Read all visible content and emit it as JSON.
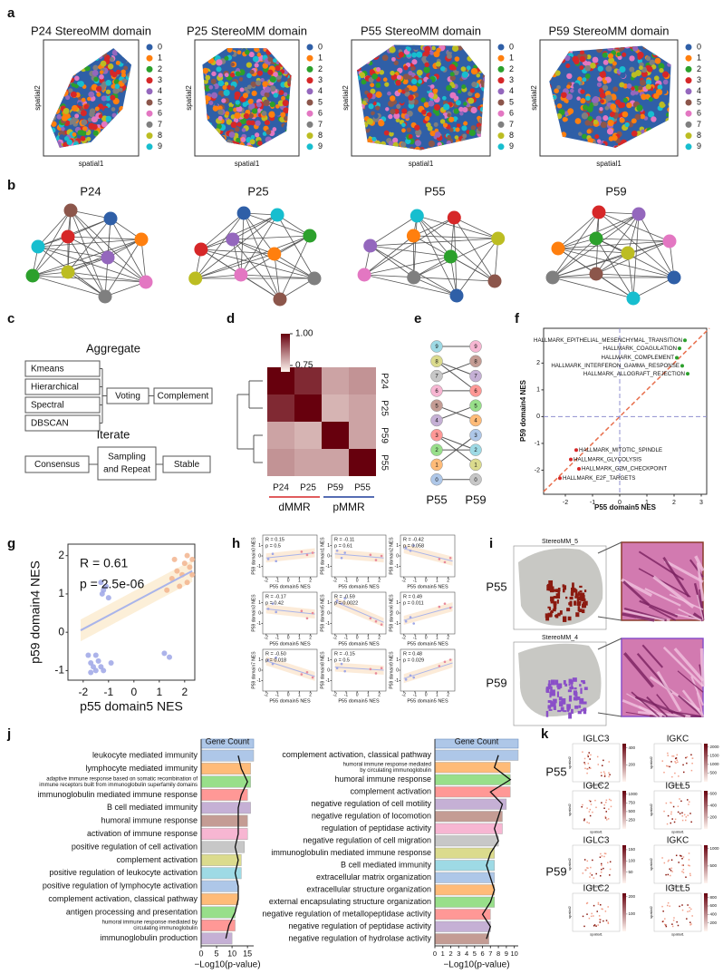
{
  "panel_labels": [
    "a",
    "b",
    "c",
    "d",
    "e",
    "f",
    "g",
    "h",
    "i",
    "j",
    "k"
  ],
  "a": {
    "titles": [
      "P24 StereoMM domain",
      "P25 StereoMM domain",
      "P55 StereoMM domain",
      "P59 StereoMM domain"
    ],
    "xlabel": "spatial1",
    "ylabel": "spatial2",
    "legend": [
      "0",
      "1",
      "2",
      "3",
      "4",
      "5",
      "6",
      "7",
      "8",
      "9"
    ],
    "colors": [
      "#2f5fa7",
      "#ff7f0e",
      "#2ca02c",
      "#d62728",
      "#9467bd",
      "#8c564b",
      "#e377c2",
      "#7f7f7f",
      "#bcbd22",
      "#17becf"
    ]
  },
  "b": {
    "titles": [
      "P24",
      "P25",
      "P55",
      "P59"
    ]
  },
  "c": {
    "aggregate": "Aggregate",
    "methods": [
      "Kmeans",
      "Hierarchical",
      "Spectral",
      "DBSCAN"
    ],
    "voting": "Voting",
    "complement": "Complement",
    "iterate": "Iterate",
    "consensus": "Consensus",
    "sampling": [
      "Sampling",
      "and Repeat"
    ],
    "stable": "Stable"
  },
  "d": {
    "type": "heatmap",
    "rows": [
      "P24",
      "P25",
      "P59",
      "P55"
    ],
    "columns": [
      "P24",
      "P25",
      "P59",
      "P55"
    ],
    "values": [
      [
        1.0,
        0.95,
        0.8,
        0.82
      ],
      [
        0.95,
        1.0,
        0.78,
        0.8
      ],
      [
        0.8,
        0.78,
        1.0,
        0.8
      ],
      [
        0.82,
        0.8,
        0.8,
        1.0
      ]
    ],
    "clim": [
      0.7,
      1.0
    ],
    "colorbar_ticks": [
      {
        "value": 1.0,
        "label": "1.00"
      },
      {
        "value": 0.75,
        "label": "0.75"
      }
    ],
    "groups": [
      "dMMR",
      "pMMR"
    ]
  },
  "e": {
    "left_nodes": [
      "9",
      "8",
      "7",
      "6",
      "5",
      "4",
      "3",
      "2",
      "1",
      "0"
    ],
    "right_nodes": [
      "9",
      "8",
      "7",
      "6",
      "5",
      "4",
      "3",
      "2",
      "1",
      "0"
    ],
    "labels": [
      "P55",
      "P59"
    ]
  },
  "f": {
    "type": "scatter",
    "xlabel": "P55 domain5 NES",
    "ylabel": "P59 domain4 NES",
    "xlim": [
      -2.8,
      3.2
    ],
    "ylim": [
      -2.9,
      3.3
    ],
    "xticks": [
      -2,
      -1,
      0,
      1,
      2,
      3
    ],
    "yticks": [
      -2,
      -1,
      0,
      1,
      2
    ],
    "x": [
      2.4,
      2.2,
      2.1,
      2.3,
      2.5,
      -1.6,
      -1.8,
      -1.5,
      -2.2
    ],
    "y": [
      2.85,
      2.55,
      2.2,
      1.9,
      1.6,
      -1.25,
      -1.6,
      -1.95,
      -2.3
    ],
    "labels": [
      "HALLMARK_EPITHELIAL_MESENCHYMAL_TRANSITION",
      "HALLMARK_COAGULATION",
      "HALLMARK_COMPLEMENT",
      "HALLMARK_INTERFERON_GAMMA_RESPONSE",
      "HALLMARK_ALLOGRAFT_REJECTION",
      "HALLMARK_MITOTIC_SPINDLE",
      "HALLMARK_GLYCOLYSIS",
      "HALLMARK_G2M_CHECKPOINT",
      "HALLMARK_E2F_TARGETS"
    ]
  },
  "g": {
    "type": "scatter",
    "xlabel": "p55 domain5 NES",
    "ylabel": "p59 domain4 NES",
    "r_text": "R = 0.61",
    "p_text": "p = 2.5e-06",
    "xlim": [
      -2.6,
      2.4
    ],
    "ylim": [
      -1.25,
      2.3
    ],
    "xticks": [
      -2,
      -1,
      0,
      1,
      2
    ],
    "yticks": [
      -1,
      0,
      1,
      2
    ],
    "fit_x": [
      -2.1,
      2.3
    ],
    "fit_y": [
      0.05,
      1.6
    ],
    "groups": [
      {
        "color": "#9ea6e6",
        "x": [
          -1.8,
          -1.7,
          -1.6,
          -1.5,
          -1.4,
          -1.3,
          -1.2,
          -1.7,
          -1.5,
          -1.3,
          -1.2,
          -1.1,
          -1.25,
          -1.0,
          1.2,
          1.4,
          -0.9
        ],
        "y": [
          -0.6,
          -0.8,
          -0.9,
          -1.0,
          -0.75,
          -0.9,
          -1.0,
          -1.05,
          -0.6,
          1.3,
          1.1,
          1.2,
          1.0,
          0.9,
          -0.55,
          -0.65,
          -0.8
        ]
      },
      {
        "color": "#f2b48e",
        "x": [
          1.3,
          1.5,
          1.7,
          1.9,
          2.0,
          2.1,
          2.2,
          2.3,
          1.8,
          2.1,
          1.6,
          2.3
        ],
        "y": [
          1.1,
          1.4,
          1.6,
          1.5,
          1.8,
          2.0,
          1.7,
          1.9,
          1.2,
          1.3,
          1.9,
          1.5
        ]
      }
    ]
  },
  "h": {
    "xlabel": "P55 domain5 NES",
    "xlim": [
      -2.3,
      2.6
    ],
    "ylim": [
      -2,
      2
    ],
    "xticks": [
      -2,
      -1,
      0,
      1,
      2
    ],
    "yticks": [
      -1,
      0,
      1
    ],
    "x": [
      -1.8,
      -1.4,
      -1.1,
      1.2,
      1.7,
      2.2
    ],
    "fit_x": [
      -2,
      2.4
    ],
    "plots": [
      {
        "ylabel": "P59 domain0 NES",
        "r_text": "R = 0.15",
        "p_text": "p = 0.5",
        "y": [
          -0.3,
          0.2,
          -0.5,
          0.4,
          0.1,
          0.3
        ],
        "fit": [
          -0.2,
          0.3
        ]
      },
      {
        "ylabel": "P59 domain1 NES",
        "r_text": "R = -0.11",
        "p_text": "p = 0.61",
        "y": [
          0.5,
          -0.2,
          0.3,
          0.1,
          -0.4,
          0.0
        ],
        "fit": [
          0.2,
          -0.2
        ]
      },
      {
        "ylabel": "P59 domain2 NES",
        "r_text": "R = -0.42",
        "p_text": "p = 0.058",
        "y": [
          0.8,
          0.5,
          1.0,
          -0.3,
          -0.6,
          -0.2
        ],
        "fit": [
          0.7,
          -0.5
        ]
      },
      {
        "ylabel": "P59 domain3 NES",
        "r_text": "R = -0.17",
        "p_text": "p = 0.42",
        "y": [
          0.4,
          0.9,
          0.1,
          0.2,
          -0.5,
          0.0
        ],
        "fit": [
          0.4,
          -0.1
        ]
      },
      {
        "ylabel": "P59 domain5 NES",
        "r_text": "R = -0.59",
        "p_text": "p = 0.0022",
        "y": [
          1.2,
          0.9,
          1.4,
          -0.5,
          -0.8,
          -1.1
        ],
        "fit": [
          1.1,
          -0.9
        ]
      },
      {
        "ylabel": "P59 domain6 NES",
        "r_text": "R = 0.49",
        "p_text": "p = 0.011",
        "y": [
          -0.8,
          -0.4,
          -1.0,
          0.6,
          0.9,
          0.5
        ],
        "fit": [
          -0.7,
          0.6
        ]
      },
      {
        "ylabel": "P59 domain7 NES",
        "r_text": "R = -0.50",
        "p_text": "p = 0.018",
        "y": [
          1.0,
          0.6,
          1.2,
          -0.4,
          -0.2,
          -0.7
        ],
        "fit": [
          0.9,
          -0.6
        ]
      },
      {
        "ylabel": "P59 domain8 NES",
        "r_text": "R = -0.15",
        "p_text": "p = 0.5",
        "y": [
          0.2,
          0.6,
          -0.1,
          0.1,
          -0.3,
          0.2
        ],
        "fit": [
          0.3,
          0.0
        ]
      },
      {
        "ylabel": "P59 domain9 NES",
        "r_text": "R = 0.48",
        "p_text": "p = 0.029",
        "y": [
          -0.9,
          -0.5,
          -0.7,
          0.4,
          0.8,
          1.0
        ],
        "fit": [
          -0.8,
          0.7
        ]
      }
    ]
  },
  "i": {
    "titles": [
      "StereoMM_5",
      "StereoMM_4"
    ],
    "samples": [
      "P55",
      "P59"
    ],
    "colors": [
      "#8b1a10",
      "#8a4fc8"
    ]
  },
  "j": {
    "header": "Gene Count",
    "xlabel": "−Log10(p-value)",
    "highlight_color": "#8b3a96",
    "bar_colors": [
      "#aec7e8",
      "#ffbb78",
      "#98df8a",
      "#ff9896",
      "#c5b0d5",
      "#c49c94",
      "#f7b6d2",
      "#c7c7c7",
      "#dbdb8d",
      "#9edae5"
    ],
    "left": {
      "xlim": [
        0,
        17
      ],
      "xticks": [
        0,
        5,
        10,
        15
      ],
      "highlight": 4,
      "terms": [
        "leukocyte mediated immunity",
        "lymphocyte mediated immunity",
        [
          "adaptive immune response based on somatic recombination of",
          "immune receptors built from immunoglobulin superfamily domains"
        ],
        "immunoglobulin mediated immune response",
        "B cell mediated immunity",
        "humoral immune response",
        "activation of immune response",
        "positive regulation of cell activation",
        "complement activation",
        "positive regulation of leukocyte activation",
        "positive regulation of lymphocyte activation",
        "complement activation, classical pathway",
        "antigen processing and presentation",
        [
          "humoral immune response mediated by",
          "circulating immunoglobulin"
        ],
        "immunoglobulin production"
      ],
      "values": [
        17,
        16,
        16,
        15,
        16,
        15,
        15,
        14,
        13,
        13,
        12,
        12,
        11,
        11,
        10
      ],
      "line_values": [
        12,
        13,
        15,
        13,
        12,
        12,
        12,
        11,
        12,
        11,
        12,
        12,
        11,
        9,
        8
      ]
    },
    "right": {
      "xlim": [
        0,
        10.5
      ],
      "xticks": [
        0,
        1,
        2,
        3,
        4,
        5,
        6,
        7,
        8,
        9,
        10
      ],
      "highlight": 9,
      "terms": [
        "complement activation, classical pathway",
        [
          "humoral immune response mediated",
          "by circulating immunoglobulin"
        ],
        "humoral immune response",
        "complement activation",
        "negative regulation of cell motility",
        "negative regulation of locomotion",
        "regulation of peptidase activity",
        "negative regulation of cell migration",
        "immunoglobulin mediated immune response",
        "B cell mediated immunity",
        "extracellular matrix organization",
        "extracellular structure organization",
        "external encapsulating structure organization",
        "negative regulation of metallopeptidase activity",
        "negative regulation of peptidase activity",
        "negative regulation of hydrolase activity"
      ],
      "values": [
        10.5,
        9.5,
        9.5,
        9.5,
        9,
        8.5,
        8.5,
        8,
        7.5,
        7.5,
        7.5,
        7.5,
        7.5,
        7,
        7,
        6.8
      ],
      "line_values": [
        8,
        7.5,
        9.5,
        7,
        8.5,
        8,
        7.5,
        8,
        7,
        6.5,
        7,
        7.5,
        7,
        6,
        7,
        6.5
      ]
    }
  },
  "k": {
    "samples": [
      "P55",
      "P59"
    ],
    "xlabel": "spatial1",
    "ylabel": "spatial2",
    "panels": [
      {
        "gene": "IGLC3",
        "clim": [
          0,
          450
        ],
        "ticks": [
          200,
          400
        ]
      },
      {
        "gene": "IGKC",
        "clim": [
          0,
          2200
        ],
        "ticks": [
          500,
          1000,
          1500,
          2000
        ]
      },
      {
        "gene": "IGLC2",
        "clim": [
          0,
          1100
        ],
        "ticks": [
          250,
          500,
          750,
          1000
        ]
      },
      {
        "gene": "IGLL5",
        "clim": [
          0,
          650
        ],
        "ticks": [
          200,
          400,
          600
        ]
      },
      {
        "gene": "IGLC3",
        "clim": [
          0,
          170
        ],
        "ticks": [
          50,
          100,
          150
        ]
      },
      {
        "gene": "IGKC",
        "clim": [
          0,
          1100
        ],
        "ticks": [
          500,
          1000
        ]
      },
      {
        "gene": "IGLC2",
        "clim": [
          0,
          220
        ],
        "ticks": [
          100,
          200
        ]
      },
      {
        "gene": "IGLL5",
        "clim": [
          0,
          900
        ],
        "ticks": [
          200,
          400,
          600,
          800
        ]
      }
    ]
  }
}
